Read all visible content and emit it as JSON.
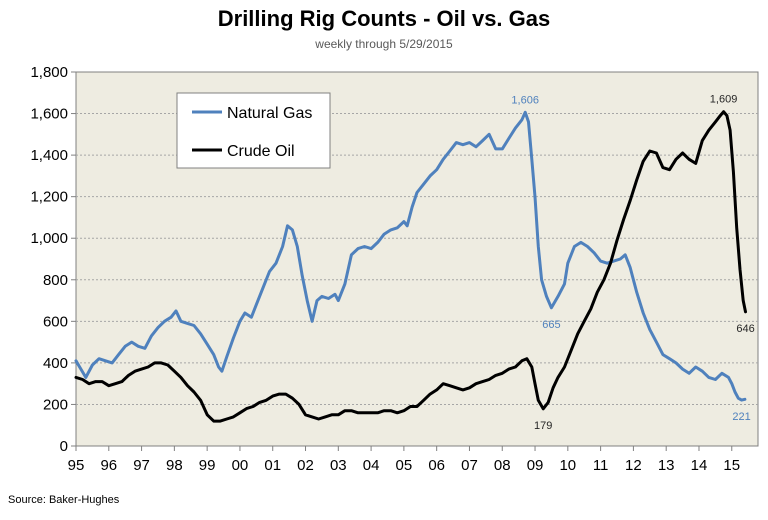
{
  "chart_data": {
    "type": "line",
    "title": "Drilling Rig Counts - Oil vs. Gas",
    "subtitle": "weekly through  5/29/2015",
    "source": "Source: Baker-Hughes",
    "xlabel": "",
    "ylabel": "",
    "xlim": [
      1995,
      2015.8
    ],
    "ylim": [
      0,
      1800
    ],
    "y_ticks": [
      0,
      200,
      400,
      600,
      800,
      1000,
      1200,
      1400,
      1600,
      1800
    ],
    "y_tick_labels": [
      "0",
      "200",
      "400",
      "600",
      "800",
      "1,000",
      "1,200",
      "1,400",
      "1,600",
      "1,800"
    ],
    "x_ticks": [
      1995,
      1996,
      1997,
      1998,
      1999,
      2000,
      2001,
      2002,
      2003,
      2004,
      2005,
      2006,
      2007,
      2008,
      2009,
      2010,
      2011,
      2012,
      2013,
      2014,
      2015
    ],
    "x_tick_labels": [
      "95",
      "96",
      "97",
      "98",
      "99",
      "00",
      "01",
      "02",
      "03",
      "04",
      "05",
      "06",
      "07",
      "08",
      "09",
      "10",
      "11",
      "12",
      "13",
      "14",
      "15"
    ],
    "grid": "horizontal",
    "legend_placement": "top-left",
    "background_color": "#eeece1",
    "series": [
      {
        "name": "Natural Gas",
        "color": "#4f81bd",
        "points": [
          [
            1995.0,
            410
          ],
          [
            1995.15,
            370
          ],
          [
            1995.3,
            330
          ],
          [
            1995.5,
            390
          ],
          [
            1995.7,
            420
          ],
          [
            1995.9,
            410
          ],
          [
            1996.1,
            400
          ],
          [
            1996.3,
            440
          ],
          [
            1996.5,
            480
          ],
          [
            1996.7,
            500
          ],
          [
            1996.9,
            480
          ],
          [
            1997.1,
            470
          ],
          [
            1997.3,
            530
          ],
          [
            1997.5,
            570
          ],
          [
            1997.7,
            600
          ],
          [
            1997.9,
            620
          ],
          [
            1998.05,
            650
          ],
          [
            1998.2,
            600
          ],
          [
            1998.4,
            590
          ],
          [
            1998.6,
            580
          ],
          [
            1998.8,
            540
          ],
          [
            1999.0,
            490
          ],
          [
            1999.2,
            440
          ],
          [
            1999.35,
            380
          ],
          [
            1999.45,
            360
          ],
          [
            1999.6,
            430
          ],
          [
            1999.8,
            520
          ],
          [
            2000.0,
            600
          ],
          [
            2000.15,
            640
          ],
          [
            2000.35,
            620
          ],
          [
            2000.5,
            680
          ],
          [
            2000.7,
            760
          ],
          [
            2000.9,
            840
          ],
          [
            2001.1,
            880
          ],
          [
            2001.3,
            960
          ],
          [
            2001.45,
            1060
          ],
          [
            2001.6,
            1040
          ],
          [
            2001.75,
            960
          ],
          [
            2001.9,
            820
          ],
          [
            2002.05,
            700
          ],
          [
            2002.2,
            600
          ],
          [
            2002.35,
            700
          ],
          [
            2002.5,
            720
          ],
          [
            2002.7,
            710
          ],
          [
            2002.9,
            730
          ],
          [
            2003.0,
            700
          ],
          [
            2003.2,
            780
          ],
          [
            2003.4,
            920
          ],
          [
            2003.6,
            950
          ],
          [
            2003.8,
            960
          ],
          [
            2004.0,
            950
          ],
          [
            2004.2,
            980
          ],
          [
            2004.4,
            1020
          ],
          [
            2004.6,
            1040
          ],
          [
            2004.8,
            1050
          ],
          [
            2005.0,
            1080
          ],
          [
            2005.1,
            1060
          ],
          [
            2005.25,
            1150
          ],
          [
            2005.4,
            1220
          ],
          [
            2005.6,
            1260
          ],
          [
            2005.8,
            1300
          ],
          [
            2006.0,
            1330
          ],
          [
            2006.2,
            1380
          ],
          [
            2006.4,
            1420
          ],
          [
            2006.6,
            1460
          ],
          [
            2006.8,
            1450
          ],
          [
            2007.0,
            1460
          ],
          [
            2007.2,
            1440
          ],
          [
            2007.4,
            1470
          ],
          [
            2007.6,
            1500
          ],
          [
            2007.8,
            1430
          ],
          [
            2008.0,
            1430
          ],
          [
            2008.2,
            1480
          ],
          [
            2008.4,
            1530
          ],
          [
            2008.6,
            1570
          ],
          [
            2008.7,
            1606
          ],
          [
            2008.8,
            1560
          ],
          [
            2008.9,
            1380
          ],
          [
            2009.0,
            1200
          ],
          [
            2009.1,
            960
          ],
          [
            2009.2,
            800
          ],
          [
            2009.35,
            720
          ],
          [
            2009.5,
            665
          ],
          [
            2009.7,
            720
          ],
          [
            2009.9,
            780
          ],
          [
            2010.0,
            880
          ],
          [
            2010.2,
            960
          ],
          [
            2010.4,
            980
          ],
          [
            2010.6,
            960
          ],
          [
            2010.8,
            930
          ],
          [
            2011.0,
            890
          ],
          [
            2011.2,
            880
          ],
          [
            2011.4,
            890
          ],
          [
            2011.6,
            900
          ],
          [
            2011.75,
            920
          ],
          [
            2011.9,
            860
          ],
          [
            2012.1,
            740
          ],
          [
            2012.3,
            640
          ],
          [
            2012.5,
            560
          ],
          [
            2012.7,
            500
          ],
          [
            2012.9,
            440
          ],
          [
            2013.1,
            420
          ],
          [
            2013.3,
            400
          ],
          [
            2013.5,
            370
          ],
          [
            2013.7,
            350
          ],
          [
            2013.9,
            380
          ],
          [
            2014.1,
            360
          ],
          [
            2014.3,
            330
          ],
          [
            2014.5,
            320
          ],
          [
            2014.7,
            350
          ],
          [
            2014.9,
            330
          ],
          [
            2015.0,
            300
          ],
          [
            2015.1,
            260
          ],
          [
            2015.2,
            230
          ],
          [
            2015.3,
            221
          ],
          [
            2015.4,
            225
          ]
        ]
      },
      {
        "name": "Crude Oil",
        "color": "#000000",
        "points": [
          [
            1995.0,
            330
          ],
          [
            1995.2,
            320
          ],
          [
            1995.4,
            300
          ],
          [
            1995.6,
            310
          ],
          [
            1995.8,
            310
          ],
          [
            1996.0,
            290
          ],
          [
            1996.2,
            300
          ],
          [
            1996.4,
            310
          ],
          [
            1996.6,
            340
          ],
          [
            1996.8,
            360
          ],
          [
            1997.0,
            370
          ],
          [
            1997.2,
            380
          ],
          [
            1997.4,
            400
          ],
          [
            1997.6,
            400
          ],
          [
            1997.8,
            390
          ],
          [
            1998.0,
            360
          ],
          [
            1998.2,
            330
          ],
          [
            1998.4,
            290
          ],
          [
            1998.6,
            260
          ],
          [
            1998.8,
            220
          ],
          [
            1999.0,
            150
          ],
          [
            1999.2,
            120
          ],
          [
            1999.4,
            120
          ],
          [
            1999.6,
            130
          ],
          [
            1999.8,
            140
          ],
          [
            2000.0,
            160
          ],
          [
            2000.2,
            180
          ],
          [
            2000.4,
            190
          ],
          [
            2000.6,
            210
          ],
          [
            2000.8,
            220
          ],
          [
            2001.0,
            240
          ],
          [
            2001.2,
            250
          ],
          [
            2001.4,
            250
          ],
          [
            2001.6,
            230
          ],
          [
            2001.8,
            200
          ],
          [
            2002.0,
            150
          ],
          [
            2002.2,
            140
          ],
          [
            2002.4,
            130
          ],
          [
            2002.6,
            140
          ],
          [
            2002.8,
            150
          ],
          [
            2003.0,
            150
          ],
          [
            2003.2,
            170
          ],
          [
            2003.4,
            170
          ],
          [
            2003.6,
            160
          ],
          [
            2003.8,
            160
          ],
          [
            2004.0,
            160
          ],
          [
            2004.2,
            160
          ],
          [
            2004.4,
            170
          ],
          [
            2004.6,
            170
          ],
          [
            2004.8,
            160
          ],
          [
            2005.0,
            170
          ],
          [
            2005.2,
            190
          ],
          [
            2005.4,
            190
          ],
          [
            2005.6,
            220
          ],
          [
            2005.8,
            250
          ],
          [
            2006.0,
            270
          ],
          [
            2006.2,
            300
          ],
          [
            2006.4,
            290
          ],
          [
            2006.6,
            280
          ],
          [
            2006.8,
            270
          ],
          [
            2007.0,
            280
          ],
          [
            2007.2,
            300
          ],
          [
            2007.4,
            310
          ],
          [
            2007.6,
            320
          ],
          [
            2007.8,
            340
          ],
          [
            2008.0,
            350
          ],
          [
            2008.2,
            370
          ],
          [
            2008.4,
            380
          ],
          [
            2008.6,
            410
          ],
          [
            2008.75,
            420
          ],
          [
            2008.9,
            380
          ],
          [
            2009.0,
            300
          ],
          [
            2009.1,
            220
          ],
          [
            2009.25,
            179
          ],
          [
            2009.4,
            210
          ],
          [
            2009.55,
            280
          ],
          [
            2009.7,
            330
          ],
          [
            2009.9,
            380
          ],
          [
            2010.1,
            460
          ],
          [
            2010.3,
            540
          ],
          [
            2010.5,
            600
          ],
          [
            2010.7,
            660
          ],
          [
            2010.9,
            740
          ],
          [
            2011.1,
            800
          ],
          [
            2011.3,
            880
          ],
          [
            2011.5,
            990
          ],
          [
            2011.7,
            1090
          ],
          [
            2011.9,
            1180
          ],
          [
            2012.1,
            1280
          ],
          [
            2012.3,
            1370
          ],
          [
            2012.5,
            1420
          ],
          [
            2012.7,
            1410
          ],
          [
            2012.9,
            1340
          ],
          [
            2013.1,
            1330
          ],
          [
            2013.3,
            1380
          ],
          [
            2013.5,
            1410
          ],
          [
            2013.7,
            1380
          ],
          [
            2013.9,
            1360
          ],
          [
            2014.1,
            1470
          ],
          [
            2014.3,
            1520
          ],
          [
            2014.5,
            1560
          ],
          [
            2014.65,
            1590
          ],
          [
            2014.75,
            1609
          ],
          [
            2014.85,
            1590
          ],
          [
            2014.95,
            1520
          ],
          [
            2015.05,
            1320
          ],
          [
            2015.15,
            1050
          ],
          [
            2015.25,
            850
          ],
          [
            2015.35,
            700
          ],
          [
            2015.42,
            646
          ]
        ]
      }
    ],
    "annotations": [
      {
        "text": "1,606",
        "x": 2008.7,
        "y": 1606,
        "series": "Natural Gas",
        "placement": "above"
      },
      {
        "text": "665",
        "x": 2009.5,
        "y": 665,
        "series": "Natural Gas",
        "placement": "below"
      },
      {
        "text": "221",
        "x": 2015.3,
        "y": 221,
        "series": "Natural Gas",
        "placement": "below"
      },
      {
        "text": "1,609",
        "x": 2014.75,
        "y": 1609,
        "series": "Crude Oil",
        "placement": "above"
      },
      {
        "text": "179",
        "x": 2009.25,
        "y": 179,
        "series": "Crude Oil",
        "placement": "below"
      },
      {
        "text": "646",
        "x": 2015.42,
        "y": 646,
        "series": "Crude Oil",
        "placement": "below"
      }
    ]
  }
}
